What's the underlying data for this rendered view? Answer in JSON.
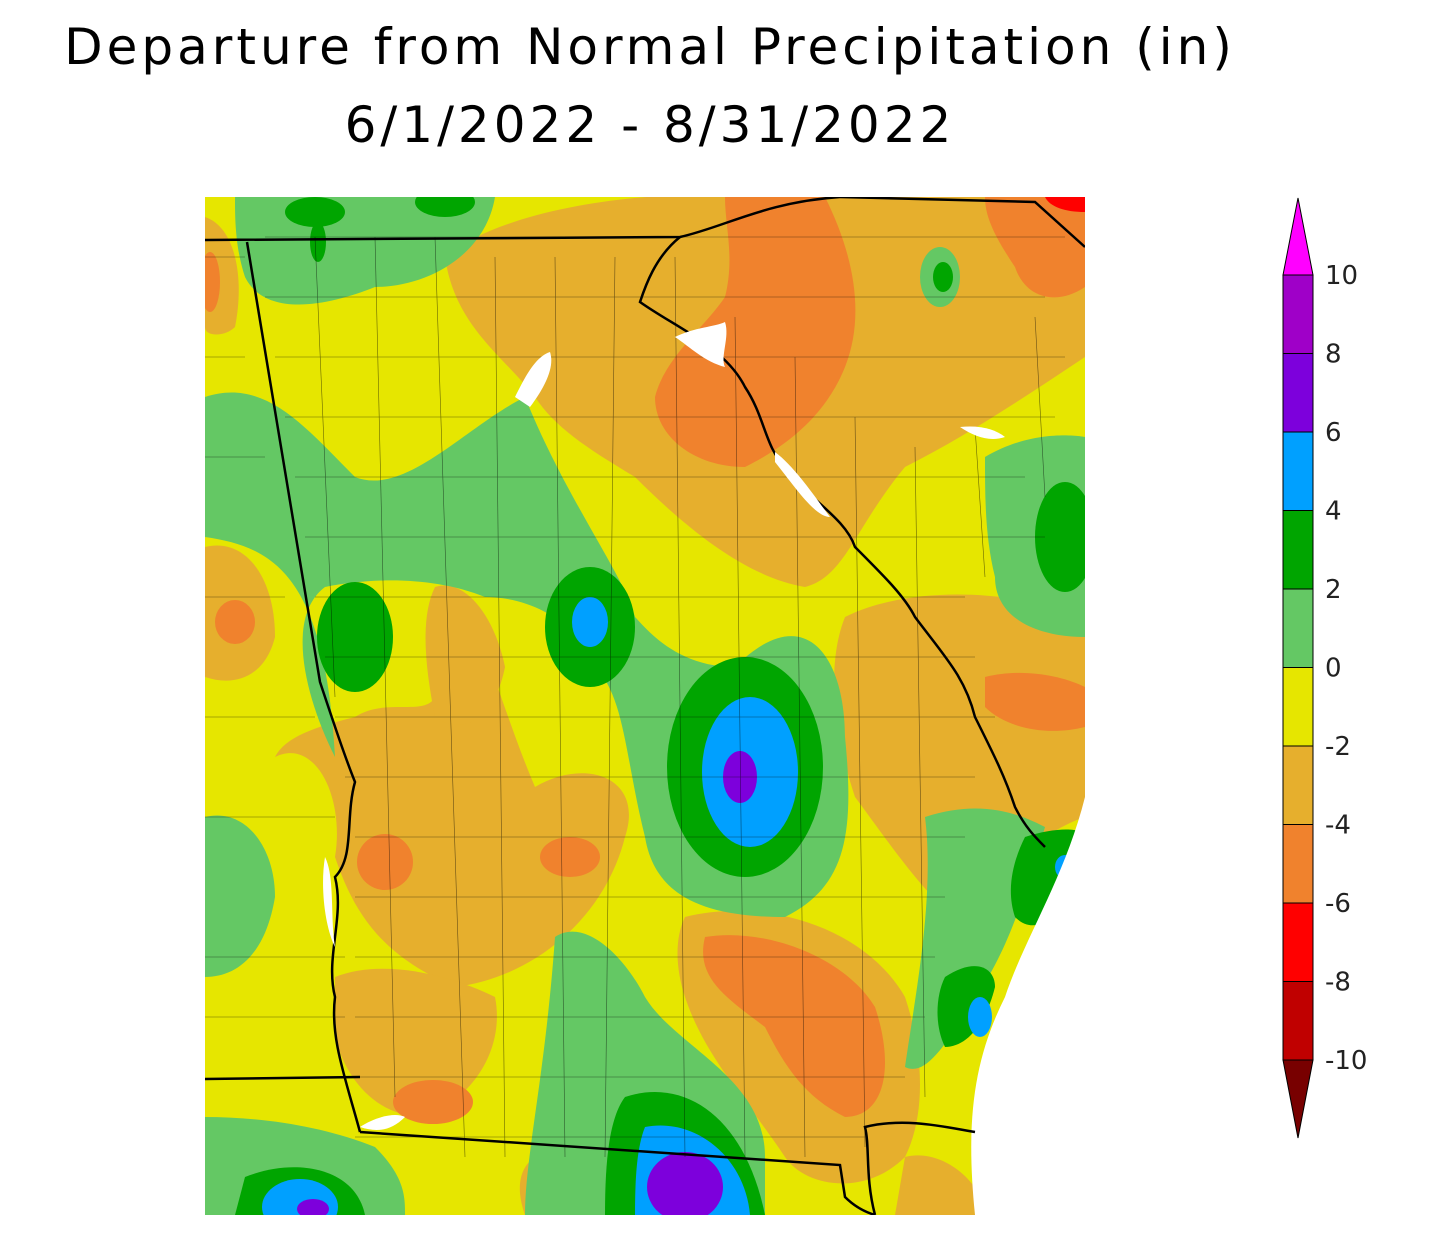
{
  "title": "Departure from Normal Precipitation (in)",
  "date_range": "6/1/2022 - 8/31/2022",
  "legend": {
    "unit": "in",
    "levels": [
      "10",
      "8",
      "6",
      "4",
      "2",
      "0",
      "-2",
      "-4",
      "-6",
      "-8",
      "-10"
    ],
    "colors": {
      "above_10": "#ff00ff",
      "8_10": "#9f00c8",
      "6_8": "#7d00dc",
      "4_6": "#00a0ff",
      "2_4": "#00a500",
      "0_2": "#64c864",
      "m2_0": "#e6e600",
      "m4_m2": "#e6af2d",
      "m6_m4": "#f0822d",
      "m8_m6": "#ff0000",
      "m10_m8": "#c00000",
      "below_m10": "#780000"
    }
  }
}
